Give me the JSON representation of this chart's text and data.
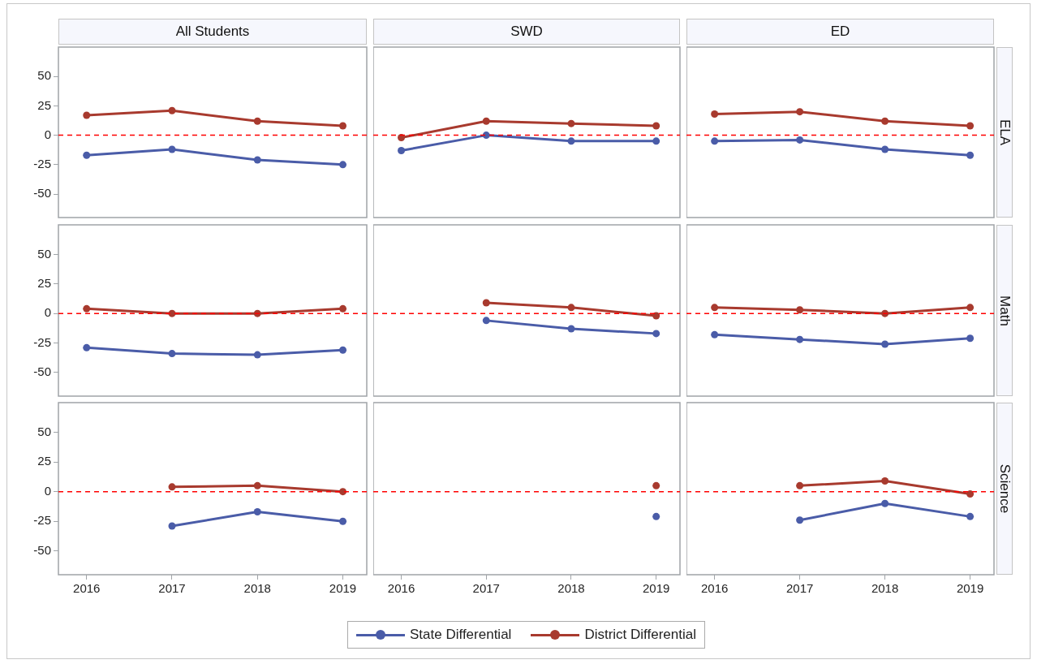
{
  "chart_data": [
    {
      "type": "line",
      "title": "All Students",
      "x": [
        2016,
        2017,
        2018,
        2019
      ],
      "xlim": [
        2015.67,
        2019.28
      ],
      "ylim": [
        -70,
        75
      ],
      "xticks": [
        2016,
        2017,
        2018,
        2019
      ],
      "yticks": [
        -50,
        -25,
        0,
        25,
        50
      ],
      "tick_labels": "y",
      "marker": "circle",
      "grid": false,
      "ref_lines": [
        {
          "axis": "y",
          "value": 0,
          "color": "#ff0000",
          "line_style": "dashed"
        }
      ],
      "series": [
        {
          "color": "#4a5ca8",
          "values": [
            -17,
            -12,
            -21,
            -25
          ]
        },
        {
          "color": "#a83a2e",
          "values": [
            17,
            21,
            12,
            8
          ]
        }
      ]
    },
    {
      "type": "line",
      "title": "SWD",
      "x": [
        2016,
        2017,
        2018,
        2019
      ],
      "xlim": [
        2015.67,
        2019.28
      ],
      "ylim": [
        -70,
        75
      ],
      "xticks": [
        2016,
        2017,
        2018,
        2019
      ],
      "yticks": [
        -50,
        -25,
        0,
        25,
        50
      ],
      "tick_labels": false,
      "marker": "circle",
      "grid": false,
      "ref_lines": [
        {
          "axis": "y",
          "value": 0,
          "color": "#ff0000",
          "line_style": "dashed"
        }
      ],
      "series": [
        {
          "color": "#4a5ca8",
          "values": [
            -13,
            0,
            -5,
            -5
          ]
        },
        {
          "color": "#a83a2e",
          "values": [
            -2,
            12,
            10,
            8
          ]
        }
      ]
    },
    {
      "type": "line",
      "title": "ED",
      "y2label": "ELA",
      "x": [
        2016,
        2017,
        2018,
        2019
      ],
      "xlim": [
        2015.67,
        2019.28
      ],
      "ylim": [
        -70,
        75
      ],
      "xticks": [
        2016,
        2017,
        2018,
        2019
      ],
      "yticks": [
        -50,
        -25,
        0,
        25,
        50
      ],
      "tick_labels": false,
      "marker": "circle",
      "grid": false,
      "ref_lines": [
        {
          "axis": "y",
          "value": 0,
          "color": "#ff0000",
          "line_style": "dashed"
        }
      ],
      "series": [
        {
          "color": "#4a5ca8",
          "values": [
            -5,
            -4,
            -12,
            -17
          ]
        },
        {
          "color": "#a83a2e",
          "values": [
            18,
            20,
            12,
            8
          ]
        }
      ]
    },
    {
      "type": "line",
      "x": [
        2016,
        2017,
        2018,
        2019
      ],
      "xlim": [
        2015.67,
        2019.28
      ],
      "ylim": [
        -70,
        75
      ],
      "xticks": [
        2016,
        2017,
        2018,
        2019
      ],
      "yticks": [
        -50,
        -25,
        0,
        25,
        50
      ],
      "tick_labels": "y",
      "marker": "circle",
      "grid": false,
      "ref_lines": [
        {
          "axis": "y",
          "value": 0,
          "color": "#ff0000",
          "line_style": "dashed"
        }
      ],
      "series": [
        {
          "color": "#4a5ca8",
          "values": [
            -29,
            -34,
            -35,
            -31
          ]
        },
        {
          "color": "#a83a2e",
          "values": [
            4,
            0,
            0,
            4
          ]
        }
      ]
    },
    {
      "type": "line",
      "xlim": [
        2015.67,
        2019.28
      ],
      "ylim": [
        -70,
        75
      ],
      "xticks": [
        2016,
        2017,
        2018,
        2019
      ],
      "yticks": [
        -50,
        -25,
        0,
        25,
        50
      ],
      "tick_labels": false,
      "marker": "circle",
      "grid": false,
      "ref_lines": [
        {
          "axis": "y",
          "value": 0,
          "color": "#ff0000",
          "line_style": "dashed"
        }
      ],
      "series": [
        {
          "color": "#4a5ca8",
          "x": [
            2017,
            2018,
            2019
          ],
          "values": [
            -6,
            -13,
            -17
          ]
        },
        {
          "color": "#a83a2e",
          "x": [
            2017,
            2018,
            2019
          ],
          "values": [
            9,
            5,
            -2
          ]
        }
      ]
    },
    {
      "type": "line",
      "y2label": "Math",
      "x": [
        2016,
        2017,
        2018,
        2019
      ],
      "xlim": [
        2015.67,
        2019.28
      ],
      "ylim": [
        -70,
        75
      ],
      "xticks": [
        2016,
        2017,
        2018,
        2019
      ],
      "yticks": [
        -50,
        -25,
        0,
        25,
        50
      ],
      "tick_labels": false,
      "marker": "circle",
      "grid": false,
      "ref_lines": [
        {
          "axis": "y",
          "value": 0,
          "color": "#ff0000",
          "line_style": "dashed"
        }
      ],
      "series": [
        {
          "color": "#4a5ca8",
          "values": [
            -18,
            -22,
            -26,
            -21
          ]
        },
        {
          "color": "#a83a2e",
          "values": [
            5,
            3,
            0,
            5
          ]
        }
      ]
    },
    {
      "type": "line",
      "xlim": [
        2015.67,
        2019.28
      ],
      "ylim": [
        -70,
        75
      ],
      "xticks": [
        2016,
        2017,
        2018,
        2019
      ],
      "yticks": [
        -50,
        -25,
        0,
        25,
        50
      ],
      "marker": "circle",
      "grid": false,
      "ref_lines": [
        {
          "axis": "y",
          "value": 0,
          "color": "#ff0000",
          "line_style": "dashed"
        }
      ],
      "series": [
        {
          "color": "#4a5ca8",
          "x": [
            2017,
            2018,
            2019
          ],
          "values": [
            -29,
            -17,
            -25
          ]
        },
        {
          "color": "#a83a2e",
          "x": [
            2017,
            2018,
            2019
          ],
          "values": [
            4,
            5,
            0
          ]
        }
      ]
    },
    {
      "type": "line",
      "xlim": [
        2015.67,
        2019.28
      ],
      "ylim": [
        -70,
        75
      ],
      "xticks": [
        2016,
        2017,
        2018,
        2019
      ],
      "yticks": [
        -50,
        -25,
        0,
        25,
        50
      ],
      "tick_labels": "x",
      "marker": "circle",
      "grid": false,
      "legend": "bottom",
      "ref_lines": [
        {
          "axis": "y",
          "value": 0,
          "color": "#ff0000",
          "line_style": "dashed"
        }
      ],
      "series": [
        {
          "name": "State Differential",
          "color": "#4a5ca8",
          "x": [
            2019
          ],
          "values": [
            -21
          ]
        },
        {
          "name": "District Differential",
          "color": "#a83a2e",
          "x": [
            2019
          ],
          "values": [
            5
          ]
        }
      ]
    },
    {
      "type": "line",
      "y2label": "Science",
      "xlim": [
        2015.67,
        2019.28
      ],
      "ylim": [
        -70,
        75
      ],
      "xticks": [
        2016,
        2017,
        2018,
        2019
      ],
      "yticks": [
        -50,
        -25,
        0,
        25,
        50
      ],
      "tick_labels": "x",
      "marker": "circle",
      "grid": false,
      "ref_lines": [
        {
          "axis": "y",
          "value": 0,
          "color": "#ff0000",
          "line_style": "dashed"
        }
      ],
      "series": [
        {
          "color": "#4a5ca8",
          "x": [
            2017,
            2018,
            2019
          ],
          "values": [
            -24,
            -10,
            -21
          ]
        },
        {
          "color": "#a83a2e",
          "x": [
            2017,
            2018,
            2019
          ],
          "values": [
            5,
            9,
            -2
          ]
        }
      ]
    }
  ]
}
